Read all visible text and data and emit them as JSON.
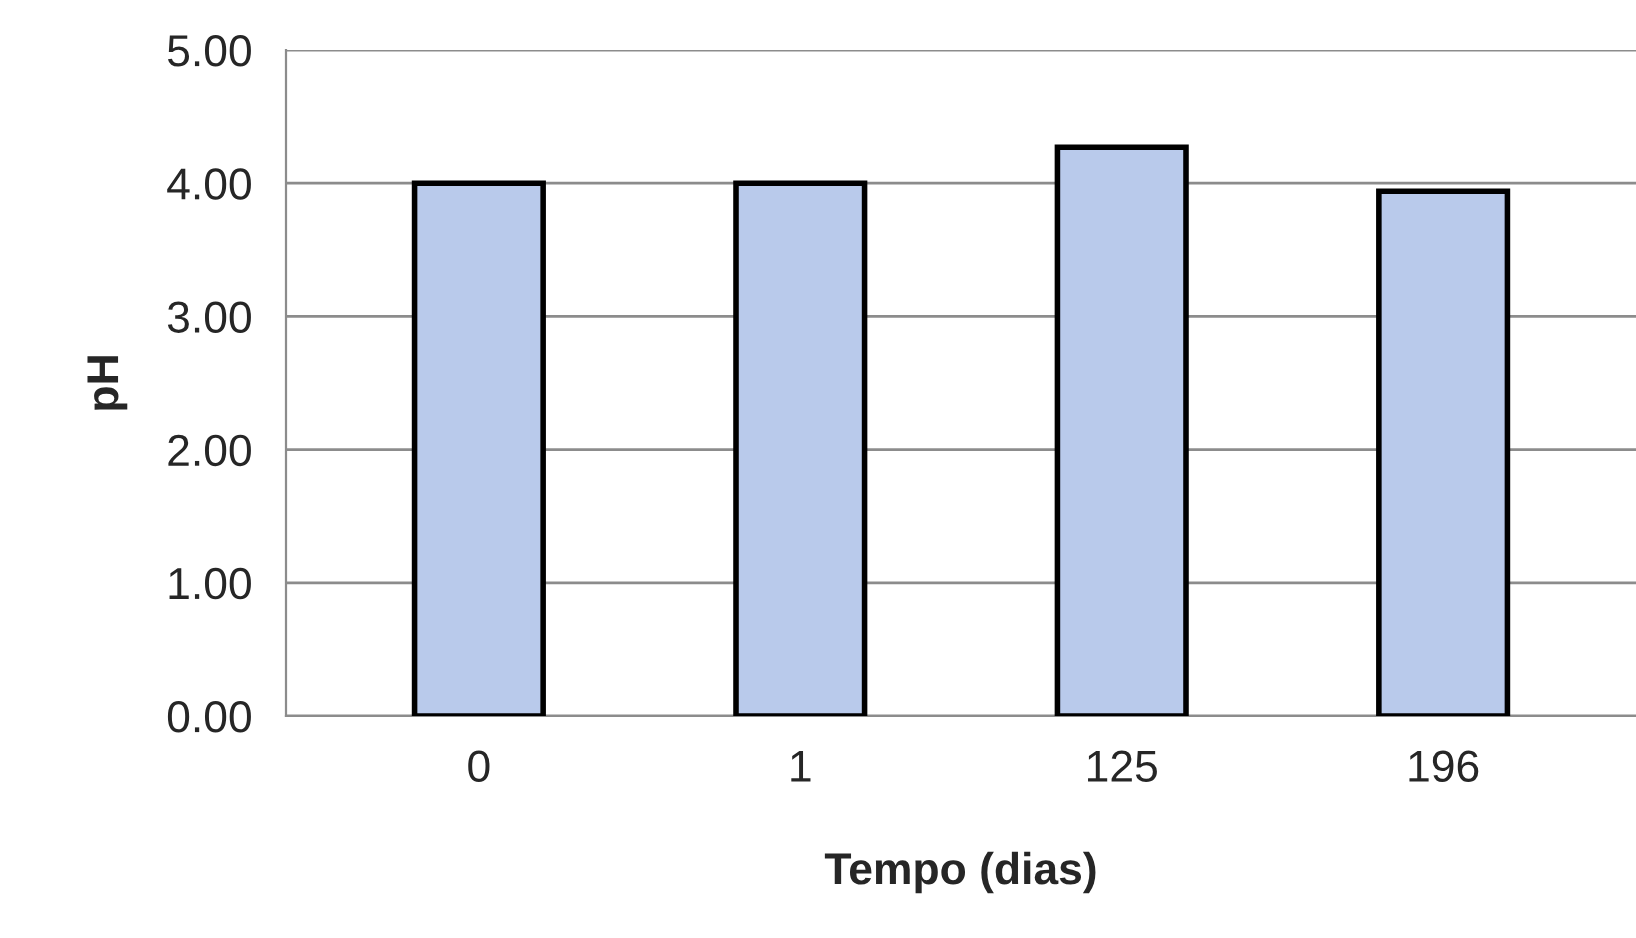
{
  "chart_data": {
    "type": "bar",
    "xlabel": "Tempo (dias)",
    "ylabel": "pH",
    "categories": [
      "0",
      "1",
      "125",
      "196"
    ],
    "values": [
      4.0,
      4.0,
      4.27,
      3.94
    ],
    "color": "#b9caeb",
    "ylim": [
      0,
      5
    ],
    "yticks": [
      {
        "value": 0,
        "label": "0.00"
      },
      {
        "value": 1,
        "label": "1.00"
      },
      {
        "value": 2,
        "label": "2.00"
      },
      {
        "value": 3,
        "label": "3.00"
      },
      {
        "value": 4,
        "label": "4.00"
      },
      {
        "value": 5,
        "label": "5.00"
      }
    ],
    "grid": "y"
  }
}
